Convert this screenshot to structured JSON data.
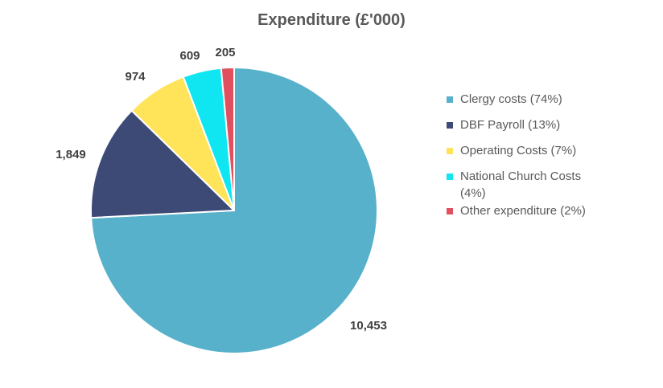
{
  "chart_data": {
    "type": "pie",
    "title": "Expenditure (£'000)",
    "slices": [
      {
        "label": "Clergy costs (74%)",
        "value": 10453,
        "value_label": "10,453",
        "color": "#57B1CB"
      },
      {
        "label": "DBF Payroll (13%)",
        "value": 1849,
        "value_label": "1,849",
        "color": "#3D4A75"
      },
      {
        "label": "Operating Costs (7%)",
        "value": 974,
        "value_label": "974",
        "color": "#FFE45A"
      },
      {
        "label": "National Church Costs (4%)",
        "value": 609,
        "value_label": "609",
        "color": "#10E5F2"
      },
      {
        "label": "Other expenditure (2%)",
        "value": 205,
        "value_label": "205",
        "color": "#E1505E"
      }
    ],
    "start_angle": "12 o'clock",
    "direction": "clockwise",
    "legend_position": "right"
  }
}
